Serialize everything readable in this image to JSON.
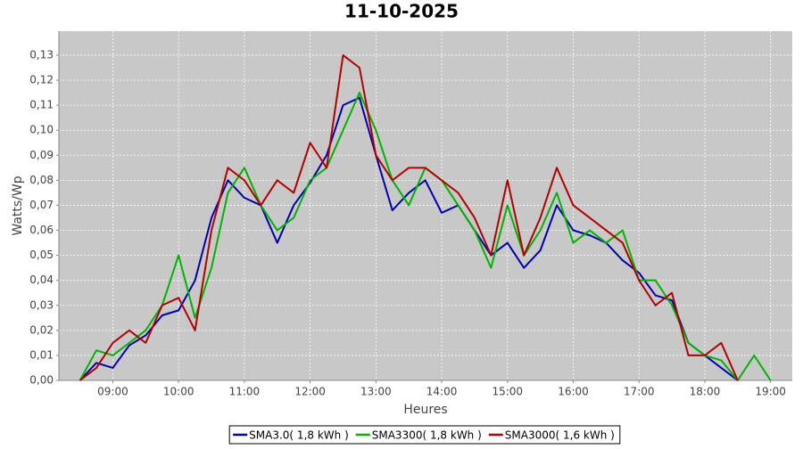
{
  "chart_data": {
    "type": "line",
    "title": "11-10-2025",
    "x_label": "Heures",
    "y_label": "Watts/Wp",
    "x": [
      8.5,
      8.75,
      9,
      9.25,
      9.5,
      9.75,
      10,
      10.25,
      10.5,
      10.75,
      11,
      11.25,
      11.5,
      11.75,
      12,
      12.25,
      12.5,
      12.75,
      13,
      13.25,
      13.5,
      13.75,
      14,
      14.25,
      14.5,
      14.75,
      15,
      15.25,
      15.5,
      15.75,
      16,
      16.25,
      16.5,
      16.75,
      17,
      17.25,
      17.5,
      17.75,
      18,
      18.25,
      18.5,
      18.75,
      19
    ],
    "series": [
      {
        "name": "SMA3.0( 1,8 kWh )",
        "color": "#0000b4",
        "values": [
          0,
          0.007,
          0.005,
          0.014,
          0.018,
          0.026,
          0.028,
          0.04,
          0.065,
          0.08,
          0.073,
          0.07,
          0.055,
          0.07,
          0.079,
          0.09,
          0.11,
          0.113,
          0.09,
          0.068,
          0.075,
          0.08,
          0.067,
          0.07,
          0.06,
          0.05,
          0.055,
          0.045,
          0.052,
          0.07,
          0.06,
          0.058,
          0.055,
          0.048,
          0.043,
          0.034,
          0.032,
          0.015,
          0.01,
          0.005,
          0,
          null,
          null
        ]
      },
      {
        "name": "SMA3300( 1,8 kWh )",
        "color": "#00b400",
        "values": [
          0,
          0.012,
          0.01,
          0.015,
          0.02,
          0.03,
          0.05,
          0.025,
          0.045,
          0.075,
          0.085,
          0.07,
          0.06,
          0.065,
          0.08,
          0.085,
          0.1,
          0.115,
          0.1,
          0.08,
          0.07,
          0.085,
          0.08,
          0.07,
          0.06,
          0.045,
          0.07,
          0.05,
          0.06,
          0.075,
          0.055,
          0.06,
          0.055,
          0.06,
          0.04,
          0.04,
          0.03,
          0.015,
          0.01,
          0.008,
          0,
          0.01,
          0
        ]
      },
      {
        "name": "SMA3000( 1,6 kWh )",
        "color": "#b40000",
        "values": [
          0,
          0.005,
          0.015,
          0.02,
          0.015,
          0.03,
          0.033,
          0.02,
          0.06,
          0.085,
          0.08,
          0.07,
          0.08,
          0.075,
          0.095,
          0.085,
          0.13,
          0.125,
          0.09,
          0.08,
          0.085,
          0.085,
          0.08,
          0.075,
          0.065,
          0.05,
          0.08,
          0.05,
          0.065,
          0.085,
          0.07,
          0.065,
          0.06,
          0.055,
          0.04,
          0.03,
          0.035,
          0.01,
          0.01,
          0.015,
          0,
          null,
          null
        ]
      }
    ],
    "xlim": [
      8.18,
      19.33
    ],
    "xticks": [
      {
        "value": 9,
        "label": "09:00"
      },
      {
        "value": 10,
        "label": "10:00"
      },
      {
        "value": 11,
        "label": "11:00"
      },
      {
        "value": 12,
        "label": "12:00"
      },
      {
        "value": 13,
        "label": "13:00"
      },
      {
        "value": 14,
        "label": "14:00"
      },
      {
        "value": 15,
        "label": "15:00"
      },
      {
        "value": 16,
        "label": "16:00"
      },
      {
        "value": 17,
        "label": "17:00"
      },
      {
        "value": 18,
        "label": "18:00"
      },
      {
        "value": 19,
        "label": "19:00"
      }
    ],
    "ylim": [
      0,
      0.1396
    ],
    "yticks": [
      {
        "value": 0,
        "label": "0,00"
      },
      {
        "value": 0.01,
        "label": "0,01"
      },
      {
        "value": 0.02,
        "label": "0,02"
      },
      {
        "value": 0.03,
        "label": "0,03"
      },
      {
        "value": 0.04,
        "label": "0,04"
      },
      {
        "value": 0.05,
        "label": "0,05"
      },
      {
        "value": 0.06,
        "label": "0,06"
      },
      {
        "value": 0.07,
        "label": "0,07"
      },
      {
        "value": 0.08,
        "label": "0,08"
      },
      {
        "value": 0.09,
        "label": "0,09"
      },
      {
        "value": 0.1,
        "label": "0,10"
      },
      {
        "value": 0.11,
        "label": "0,11"
      },
      {
        "value": 0.12,
        "label": "0,12"
      },
      {
        "value": 0.13,
        "label": "0,13"
      }
    ],
    "grid": true,
    "legend": "bottom"
  }
}
